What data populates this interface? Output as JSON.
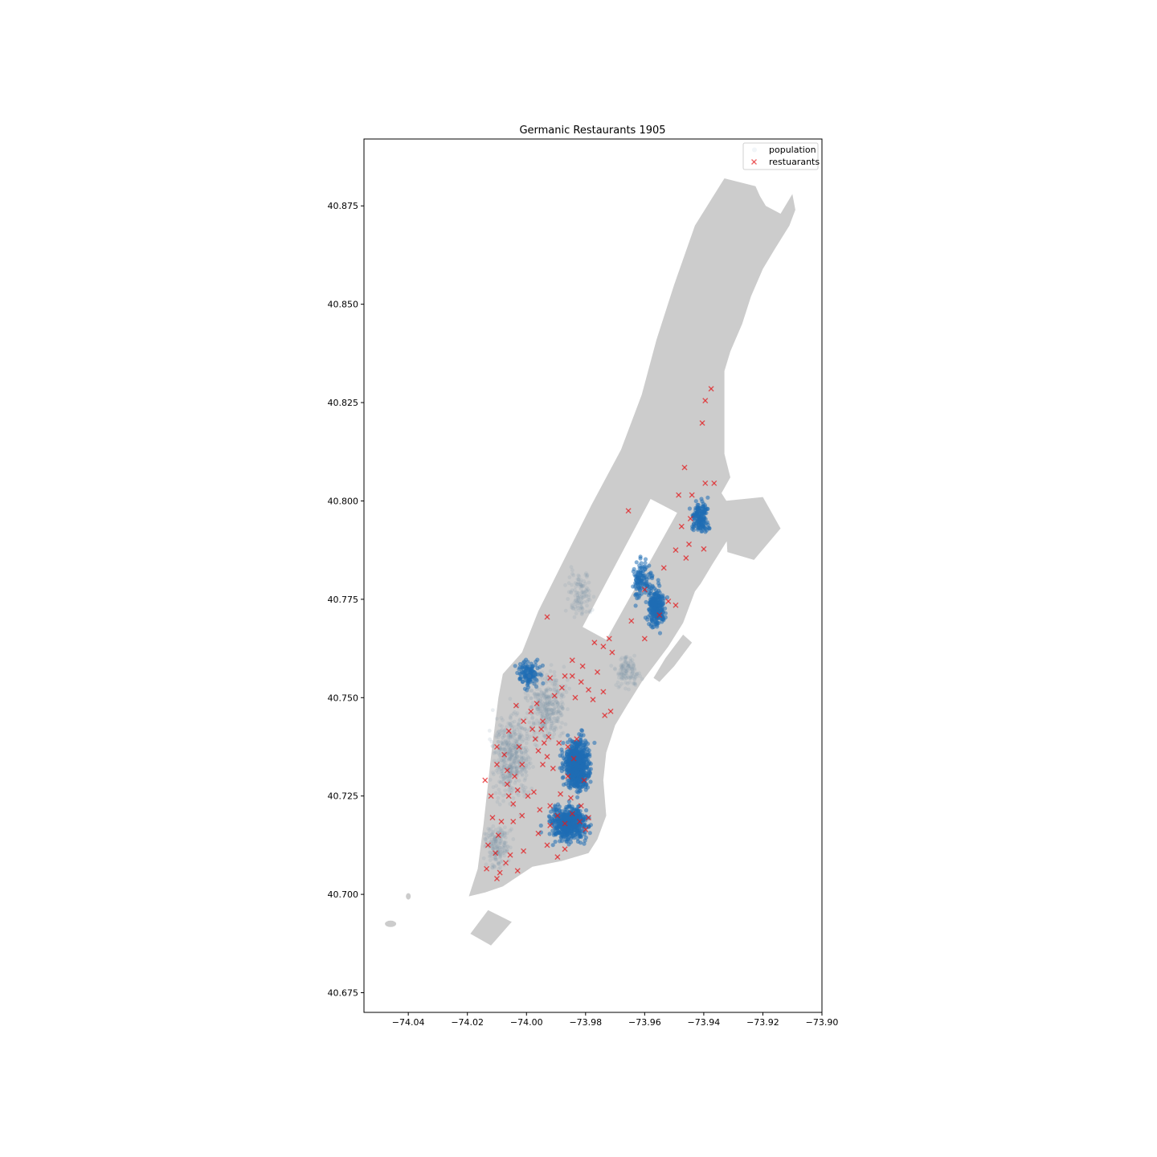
{
  "chart_data": {
    "type": "scatter",
    "title": "Germanic Restaurants 1905",
    "xlabel": "",
    "ylabel": "",
    "xlim": [
      -74.055,
      -73.9
    ],
    "ylim": [
      40.67,
      40.892
    ],
    "x_ticks": [
      -74.04,
      -74.02,
      -74.0,
      -73.98,
      -73.96,
      -73.94,
      -73.92,
      -73.9
    ],
    "x_tick_labels": [
      "−74.04",
      "−74.02",
      "−74.00",
      "−73.98",
      "−73.96",
      "−73.94",
      "−73.92",
      "−73.90"
    ],
    "y_ticks": [
      40.675,
      40.7,
      40.725,
      40.75,
      40.775,
      40.8,
      40.825,
      40.85,
      40.875
    ],
    "y_tick_labels": [
      "40.675",
      "40.700",
      "40.725",
      "40.750",
      "40.775",
      "40.800",
      "40.825",
      "40.850",
      "40.875"
    ],
    "grid": false,
    "legend_position": "top-right",
    "colors": {
      "land": "#cccccc",
      "population": "#1f6db5",
      "restaurants": "#e31a1c",
      "axes": "#000000"
    },
    "basemap": {
      "manhattan": [
        [
          -74.0195,
          40.6995
        ],
        [
          -74.0165,
          40.7065
        ],
        [
          -74.0145,
          40.718
        ],
        [
          -74.012,
          40.735
        ],
        [
          -74.0095,
          40.75
        ],
        [
          -74.008,
          40.756
        ],
        [
          -74.0015,
          40.7615
        ],
        [
          -73.996,
          40.772
        ],
        [
          -73.988,
          40.784
        ],
        [
          -73.978,
          40.799
        ],
        [
          -73.968,
          40.813
        ],
        [
          -73.961,
          40.827
        ],
        [
          -73.956,
          40.841
        ],
        [
          -73.95,
          40.855
        ],
        [
          -73.943,
          40.87
        ],
        [
          -73.933,
          40.882
        ],
        [
          -73.9225,
          40.88
        ],
        [
          -73.921,
          40.8775
        ],
        [
          -73.919,
          40.875
        ],
        [
          -73.914,
          40.873
        ],
        [
          -73.91,
          40.878
        ],
        [
          -73.909,
          40.874
        ],
        [
          -73.911,
          40.87
        ],
        [
          -73.916,
          40.864
        ],
        [
          -73.92,
          40.859
        ],
        [
          -73.924,
          40.852
        ],
        [
          -73.927,
          40.845
        ],
        [
          -73.931,
          40.838
        ],
        [
          -73.933,
          40.833
        ],
        [
          -73.933,
          40.82
        ],
        [
          -73.933,
          40.812
        ],
        [
          -73.931,
          40.806
        ],
        [
          -73.934,
          40.802
        ],
        [
          -73.929,
          40.796
        ],
        [
          -73.932,
          40.79
        ],
        [
          -73.937,
          40.784
        ],
        [
          -73.941,
          40.779
        ],
        [
          -73.943,
          40.777
        ],
        [
          -73.945,
          40.773
        ],
        [
          -73.947,
          40.769
        ],
        [
          -73.952,
          40.763
        ],
        [
          -73.956,
          40.759
        ],
        [
          -73.961,
          40.754
        ],
        [
          -73.966,
          40.748
        ],
        [
          -73.97,
          40.743
        ],
        [
          -73.973,
          40.736
        ],
        [
          -73.974,
          40.729
        ],
        [
          -73.973,
          40.72
        ],
        [
          -73.976,
          40.714
        ],
        [
          -73.979,
          40.7105
        ],
        [
          -73.988,
          40.7085
        ],
        [
          -73.998,
          40.707
        ],
        [
          -74.008,
          40.702
        ],
        [
          -74.014,
          40.7005
        ]
      ],
      "roosevelt_island": [
        [
          -73.944,
          40.764
        ],
        [
          -73.947,
          40.766
        ],
        [
          -73.953,
          40.76
        ],
        [
          -73.957,
          40.755
        ],
        [
          -73.955,
          40.754
        ],
        [
          -73.95,
          40.758
        ]
      ],
      "governors_island": [
        [
          -74.013,
          40.696
        ],
        [
          -74.005,
          40.693
        ],
        [
          -74.012,
          40.687
        ],
        [
          -74.019,
          40.69
        ]
      ],
      "randalls_island": [
        [
          -73.933,
          40.8
        ],
        [
          -73.92,
          40.801
        ],
        [
          -73.914,
          40.793
        ],
        [
          -73.923,
          40.785
        ],
        [
          -73.932,
          40.787
        ]
      ]
    },
    "central_park_hole": [
      [
        -73.981,
        40.768
      ],
      [
        -73.973,
        40.7647
      ],
      [
        -73.949,
        40.797
      ],
      [
        -73.958,
        40.8005
      ]
    ],
    "population_clusters": [
      {
        "cx": -73.983,
        "cy": 40.733,
        "sx": 0.004,
        "sy": 0.006,
        "n": 650,
        "dense": true
      },
      {
        "cx": -73.986,
        "cy": 40.718,
        "sx": 0.006,
        "sy": 0.004,
        "n": 500,
        "dense": true
      },
      {
        "cx": -73.956,
        "cy": 40.773,
        "sx": 0.0025,
        "sy": 0.005,
        "n": 260,
        "dense": true
      },
      {
        "cx": -73.961,
        "cy": 40.78,
        "sx": 0.003,
        "sy": 0.005,
        "n": 110,
        "dense": true
      },
      {
        "cx": -73.941,
        "cy": 40.796,
        "sx": 0.0028,
        "sy": 0.004,
        "n": 150,
        "dense": true
      },
      {
        "cx": -73.999,
        "cy": 40.756,
        "sx": 0.0035,
        "sy": 0.003,
        "n": 120,
        "dense": true
      },
      {
        "cx": -74.005,
        "cy": 40.735,
        "sx": 0.006,
        "sy": 0.01,
        "n": 500,
        "dense": false
      },
      {
        "cx": -73.993,
        "cy": 40.748,
        "sx": 0.006,
        "sy": 0.008,
        "n": 350,
        "dense": false
      },
      {
        "cx": -73.982,
        "cy": 40.776,
        "sx": 0.004,
        "sy": 0.006,
        "n": 120,
        "dense": false
      },
      {
        "cx": -73.966,
        "cy": 40.757,
        "sx": 0.004,
        "sy": 0.004,
        "n": 130,
        "dense": false
      },
      {
        "cx": -74.01,
        "cy": 40.712,
        "sx": 0.004,
        "sy": 0.005,
        "n": 180,
        "dense": false
      }
    ],
    "restaurants": [
      [
        -73.9375,
        40.8285
      ],
      [
        -73.9395,
        40.8255
      ],
      [
        -73.9405,
        40.8198
      ],
      [
        -73.9465,
        40.8085
      ],
      [
        -73.9485,
        40.8015
      ],
      [
        -73.944,
        40.8015
      ],
      [
        -73.9365,
        40.8045
      ],
      [
        -73.9395,
        40.8045
      ],
      [
        -73.9445,
        40.7955
      ],
      [
        -73.9475,
        40.7935
      ],
      [
        -73.945,
        40.789
      ],
      [
        -73.9495,
        40.7875
      ],
      [
        -73.94,
        40.7878
      ],
      [
        -73.946,
        40.7855
      ],
      [
        -73.9655,
        40.7975
      ],
      [
        -73.9535,
        40.783
      ],
      [
        -73.96,
        40.7775
      ],
      [
        -73.952,
        40.7745
      ],
      [
        -73.9495,
        40.7735
      ],
      [
        -73.955,
        40.771
      ],
      [
        -73.9645,
        40.7695
      ],
      [
        -73.993,
        40.7705
      ],
      [
        -73.96,
        40.765
      ],
      [
        -73.972,
        40.765
      ],
      [
        -73.977,
        40.764
      ],
      [
        -73.974,
        40.763
      ],
      [
        -73.971,
        40.7615
      ],
      [
        -73.9845,
        40.7595
      ],
      [
        -73.981,
        40.758
      ],
      [
        -73.976,
        40.7565
      ],
      [
        -73.9815,
        40.754
      ],
      [
        -73.979,
        40.752
      ],
      [
        -73.987,
        40.7555
      ],
      [
        -73.9845,
        40.7555
      ],
      [
        -73.974,
        40.7515
      ],
      [
        -73.9775,
        40.7495
      ],
      [
        -73.9715,
        40.7465
      ],
      [
        -73.9735,
        40.7455
      ],
      [
        -73.9905,
        40.7505
      ],
      [
        -73.992,
        40.755
      ],
      [
        -73.9965,
        40.7485
      ],
      [
        -73.995,
        40.742
      ],
      [
        -73.998,
        40.742
      ],
      [
        -74.001,
        40.744
      ],
      [
        -73.9925,
        40.74
      ],
      [
        -73.997,
        40.7395
      ],
      [
        -73.994,
        40.7385
      ],
      [
        -73.996,
        40.7365
      ],
      [
        -73.993,
        40.735
      ],
      [
        -73.991,
        40.732
      ],
      [
        -73.9945,
        40.733
      ],
      [
        -74.0015,
        40.733
      ],
      [
        -74.004,
        40.73
      ],
      [
        -74.0065,
        40.728
      ],
      [
        -74.0075,
        40.7355
      ],
      [
        -74.01,
        40.7375
      ],
      [
        -74.01,
        40.733
      ],
      [
        -74.006,
        40.725
      ],
      [
        -74.003,
        40.7265
      ],
      [
        -74.0045,
        40.723
      ],
      [
        -73.9995,
        40.725
      ],
      [
        -73.9975,
        40.726
      ],
      [
        -74.0015,
        40.72
      ],
      [
        -74.0045,
        40.7185
      ],
      [
        -74.0085,
        40.7185
      ],
      [
        -74.0115,
        40.7195
      ],
      [
        -74.0095,
        40.715
      ],
      [
        -74.013,
        40.7125
      ],
      [
        -74.0105,
        40.7105
      ],
      [
        -74.007,
        40.708
      ],
      [
        -74.003,
        40.706
      ],
      [
        -74.009,
        40.7055
      ],
      [
        -74.0135,
        40.7065
      ],
      [
        -74.01,
        40.704
      ],
      [
        -74.0055,
        40.71
      ],
      [
        -74.001,
        40.711
      ],
      [
        -73.996,
        40.7155
      ],
      [
        -73.993,
        40.7125
      ],
      [
        -73.9895,
        40.7095
      ],
      [
        -73.987,
        40.7115
      ],
      [
        -73.992,
        40.7175
      ],
      [
        -73.9895,
        40.72
      ],
      [
        -73.987,
        40.718
      ],
      [
        -73.9845,
        40.7205
      ],
      [
        -73.982,
        40.7185
      ],
      [
        -73.98,
        40.7165
      ],
      [
        -73.979,
        40.7195
      ],
      [
        -73.9815,
        40.7225
      ],
      [
        -73.985,
        40.7245
      ],
      [
        -73.9885,
        40.7255
      ],
      [
        -73.992,
        40.7225
      ],
      [
        -73.9955,
        40.7215
      ],
      [
        -73.986,
        40.73
      ],
      [
        -73.984,
        40.7345
      ],
      [
        -73.986,
        40.7375
      ],
      [
        -73.983,
        40.7395
      ],
      [
        -73.989,
        40.7385
      ],
      [
        -73.9945,
        40.744
      ],
      [
        -73.9985,
        40.7465
      ],
      [
        -74.0035,
        40.748
      ],
      [
        -74.006,
        40.7415
      ],
      [
        -73.988,
        40.7525
      ],
      [
        -73.9835,
        40.75
      ],
      [
        -74.012,
        40.725
      ],
      [
        -74.014,
        40.729
      ],
      [
        -74.0065,
        40.7315
      ],
      [
        -74.0025,
        40.7375
      ],
      [
        -73.9805,
        40.729
      ]
    ],
    "legend": [
      {
        "label": "population",
        "marker": "circle-light"
      },
      {
        "label": "restuarants",
        "marker": "x-red"
      }
    ]
  }
}
